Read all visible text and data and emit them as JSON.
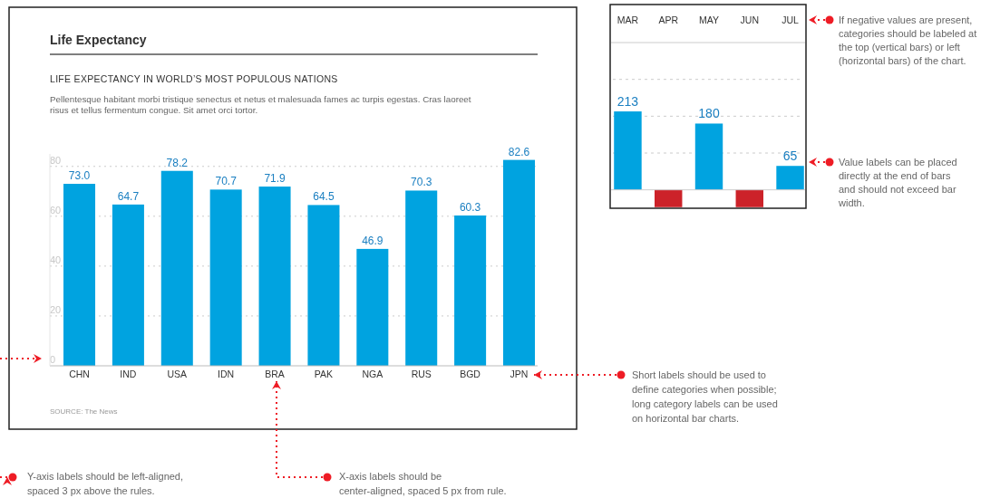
{
  "chart_data": [
    {
      "type": "bar",
      "title": "Life Expectancy",
      "subtitle": "LIFE EXPECTANCY IN WORLD’S MOST POPULOUS NATIONS",
      "categories": [
        "CHN",
        "IND",
        "USA",
        "IDN",
        "BRA",
        "PAK",
        "NGA",
        "RUS",
        "BGD",
        "JPN"
      ],
      "values": [
        73.0,
        64.7,
        78.2,
        70.7,
        71.9,
        64.5,
        46.9,
        70.3,
        60.3,
        82.6
      ],
      "color": "#00a3e0",
      "ylim": [
        0,
        85
      ],
      "yticks": [
        0,
        20,
        40,
        60,
        80
      ],
      "grid": "y",
      "value_labels": [
        "73.0",
        "64.7",
        "78.2",
        "70.7",
        "71.9",
        "64.5",
        "46.9",
        "70.3",
        "60.3",
        "82.6"
      ],
      "annotations": [
        "Pellentesque habitant morbi tristique senectus et netus et malesuada fames ac turpis egestas. Cras laoreet risus et tellus fermentum congue. Sit amet orci tortor.",
        "SOURCE: The News",
        "Y-axis labels should be left-aligned, spaced 3 px above the rules.",
        "X-axis labels should be center-aligned, spaced 5 px from rule.",
        "Short labels should be used to define categories when possible; long category labels can be used on horizontal bar charts."
      ]
    },
    {
      "type": "bar",
      "categories": [
        "MAR",
        "APR",
        "MAY",
        "JUN",
        "JUL"
      ],
      "values": [
        213,
        -47,
        180,
        -47,
        65
      ],
      "ylim": [
        -50,
        400
      ],
      "yticks": [
        {
          "value": 100,
          "label": null
        },
        {
          "value": 200,
          "label": null
        },
        {
          "value": 300,
          "label": null
        }
      ],
      "colors": [
        "#00a3e0",
        "#cc2229",
        "#00a3e0",
        "#cc2229",
        "#00a3e0"
      ],
      "value_labels": [
        "213",
        null,
        "180",
        null,
        "65"
      ],
      "grid": true,
      "annotations": [
        "If negative values are present, categories should be labeled at the top (vertical bars) or left (horizontal bars) of the chart.",
        "Value labels can be placed directly at the end of bars and should not exceed bar width."
      ]
    }
  ]
}
